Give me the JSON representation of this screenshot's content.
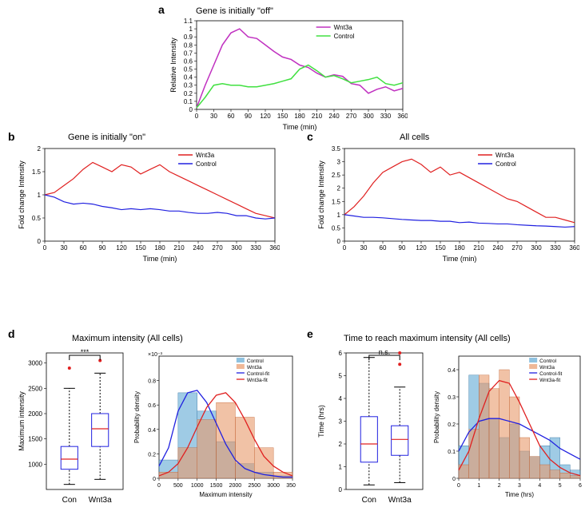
{
  "panel_a": {
    "label": "a",
    "title": "Gene is initially \"off\"",
    "xlabel": "Time (min)",
    "ylabel": "Relative Intensity",
    "xlim": [
      0,
      360
    ],
    "xtick_step": 30,
    "ylim": [
      0,
      1.1
    ],
    "ytick_step": 0.1,
    "legend": [
      "Wnt3a",
      "Control"
    ],
    "series_colors": {
      "wnt3a": "#c030c0",
      "control": "#40e040"
    },
    "line_width": 1.5,
    "font_label": 9,
    "wnt3a_x": [
      0,
      15,
      30,
      45,
      60,
      75,
      90,
      105,
      120,
      135,
      150,
      165,
      180,
      195,
      210,
      225,
      240,
      255,
      270,
      285,
      300,
      315,
      330,
      345,
      360
    ],
    "wnt3a_y": [
      0.02,
      0.3,
      0.55,
      0.8,
      0.95,
      1.0,
      0.9,
      0.88,
      0.8,
      0.72,
      0.65,
      0.62,
      0.55,
      0.52,
      0.45,
      0.4,
      0.43,
      0.41,
      0.32,
      0.3,
      0.2,
      0.25,
      0.28,
      0.23,
      0.26
    ],
    "control_x": [
      0,
      15,
      30,
      45,
      60,
      75,
      90,
      105,
      120,
      135,
      150,
      165,
      180,
      195,
      210,
      225,
      240,
      255,
      270,
      285,
      300,
      315,
      330,
      345,
      360
    ],
    "control_y": [
      0.02,
      0.15,
      0.3,
      0.32,
      0.3,
      0.3,
      0.28,
      0.28,
      0.3,
      0.32,
      0.35,
      0.38,
      0.5,
      0.55,
      0.48,
      0.4,
      0.42,
      0.38,
      0.33,
      0.35,
      0.37,
      0.4,
      0.32,
      0.3,
      0.33
    ]
  },
  "panel_b": {
    "label": "b",
    "title": "Gene is initially \"on\"",
    "xlabel": "Time (min)",
    "ylabel": "Fold change Intensity",
    "xlim": [
      0,
      360
    ],
    "xtick_step": 30,
    "ylim": [
      0,
      2.0
    ],
    "yticks": [
      0,
      0.5,
      1,
      1.5,
      2
    ],
    "legend": [
      "Wnt3a",
      "Control"
    ],
    "series_colors": {
      "wnt3a": "#e02020",
      "control": "#2020e0"
    },
    "line_width": 1.2,
    "font_label": 9,
    "wnt3a_x": [
      0,
      15,
      30,
      45,
      60,
      75,
      90,
      105,
      120,
      135,
      150,
      165,
      180,
      195,
      210,
      225,
      240,
      255,
      270,
      285,
      300,
      315,
      330,
      345,
      360
    ],
    "wnt3a_y": [
      1.0,
      1.05,
      1.2,
      1.35,
      1.55,
      1.7,
      1.6,
      1.5,
      1.65,
      1.6,
      1.45,
      1.55,
      1.65,
      1.5,
      1.4,
      1.3,
      1.2,
      1.1,
      1.0,
      0.9,
      0.8,
      0.7,
      0.6,
      0.55,
      0.5
    ],
    "control_x": [
      0,
      15,
      30,
      45,
      60,
      75,
      90,
      105,
      120,
      135,
      150,
      165,
      180,
      195,
      210,
      225,
      240,
      255,
      270,
      285,
      300,
      315,
      330,
      345,
      360
    ],
    "control_y": [
      1.0,
      0.95,
      0.85,
      0.8,
      0.82,
      0.8,
      0.75,
      0.72,
      0.68,
      0.7,
      0.68,
      0.7,
      0.68,
      0.65,
      0.65,
      0.62,
      0.6,
      0.6,
      0.62,
      0.6,
      0.55,
      0.55,
      0.5,
      0.48,
      0.5
    ]
  },
  "panel_c": {
    "label": "c",
    "title": "All cells",
    "xlabel": "Time (min)",
    "ylabel": "Fold change Intensity",
    "xlim": [
      0,
      360
    ],
    "xtick_step": 30,
    "ylim": [
      0,
      3.5
    ],
    "yticks": [
      0,
      0.5,
      1,
      1.5,
      2,
      2.5,
      3,
      3.5
    ],
    "legend": [
      "Wnt3a",
      "Control"
    ],
    "series_colors": {
      "wnt3a": "#e02020",
      "control": "#2020e0"
    },
    "line_width": 1.2,
    "font_label": 9,
    "wnt3a_x": [
      0,
      15,
      30,
      45,
      60,
      75,
      90,
      105,
      120,
      135,
      150,
      165,
      180,
      195,
      210,
      225,
      240,
      255,
      270,
      285,
      300,
      315,
      330,
      345,
      360
    ],
    "wnt3a_y": [
      1.0,
      1.3,
      1.7,
      2.2,
      2.6,
      2.8,
      3.0,
      3.1,
      2.9,
      2.6,
      2.8,
      2.5,
      2.6,
      2.4,
      2.2,
      2.0,
      1.8,
      1.6,
      1.5,
      1.3,
      1.1,
      0.9,
      0.9,
      0.8,
      0.7
    ],
    "control_x": [
      0,
      15,
      30,
      45,
      60,
      75,
      90,
      105,
      120,
      135,
      150,
      165,
      180,
      195,
      210,
      225,
      240,
      255,
      270,
      285,
      300,
      315,
      330,
      345,
      360
    ],
    "control_y": [
      1.0,
      0.95,
      0.9,
      0.9,
      0.88,
      0.85,
      0.82,
      0.8,
      0.78,
      0.78,
      0.75,
      0.75,
      0.7,
      0.72,
      0.68,
      0.67,
      0.65,
      0.65,
      0.62,
      0.6,
      0.58,
      0.57,
      0.55,
      0.53,
      0.55
    ]
  },
  "panel_d": {
    "label": "d",
    "title": "Maximum intensity (All cells)",
    "box": {
      "xlabels": [
        "Con",
        "Wnt3a"
      ],
      "ylabel": "Maximum intensity",
      "ylim": [
        500,
        3200
      ],
      "yticks": [
        1000,
        1500,
        2000,
        2500,
        3000
      ],
      "sig_label": "***",
      "box_border": "#2020e0",
      "median_color": "#e02020",
      "outlier_color": "#e02020",
      "whisker_color": "#000000",
      "font_label": 9,
      "con": {
        "q1": 900,
        "med": 1100,
        "q3": 1350,
        "lo": 600,
        "hi": 2500,
        "outliers": [
          2900
        ]
      },
      "wnt3a": {
        "q1": 1350,
        "med": 1700,
        "q3": 2000,
        "lo": 700,
        "hi": 2800,
        "outliers": [
          3050
        ]
      }
    },
    "hist": {
      "xlabel": "Maximum intensity",
      "ylabel": "Probability density",
      "ylabel_suffix": "×10⁻³",
      "xlim": [
        0,
        3500
      ],
      "xtick_step": 500,
      "ylim": [
        0,
        0.001
      ],
      "yticks": [
        0,
        0.2,
        0.4,
        0.6,
        0.8
      ],
      "bin_width": 500,
      "legend": [
        "Control",
        "Wnt3a",
        "Control-fit",
        "Wnt3a-fit"
      ],
      "colors": {
        "control_bar": "#5fa8d3",
        "control_bar_alpha": 0.6,
        "wnt3a_bar": "#e89a6b",
        "wnt3a_bar_alpha": 0.6,
        "control_fit": "#2020e0",
        "wnt3a_fit": "#e02020"
      },
      "font_label": 8,
      "control_bins": [
        0.15,
        0.7,
        0.55,
        0.3,
        0.12,
        0.05,
        0.02
      ],
      "wnt3a_bins": [
        0.05,
        0.25,
        0.48,
        0.62,
        0.5,
        0.25,
        0.05
      ],
      "control_fit_x": [
        0,
        250,
        500,
        750,
        1000,
        1250,
        1500,
        1750,
        2000,
        2250,
        2500,
        2750,
        3000,
        3250,
        3500
      ],
      "control_fit_y": [
        0.1,
        0.25,
        0.55,
        0.7,
        0.72,
        0.62,
        0.45,
        0.28,
        0.15,
        0.08,
        0.05,
        0.03,
        0.02,
        0.01,
        0.01
      ],
      "wnt3a_fit_x": [
        0,
        250,
        500,
        750,
        1000,
        1250,
        1500,
        1750,
        2000,
        2250,
        2500,
        2750,
        3000,
        3250,
        3500
      ],
      "wnt3a_fit_y": [
        0.02,
        0.05,
        0.12,
        0.25,
        0.42,
        0.58,
        0.68,
        0.7,
        0.62,
        0.48,
        0.32,
        0.18,
        0.1,
        0.05,
        0.02
      ]
    }
  },
  "panel_e": {
    "label": "e",
    "title": "Time to reach maximum intensity (All cells)",
    "box": {
      "xlabels": [
        "Con",
        "Wnt3a"
      ],
      "ylabel": "Time (hrs)",
      "ylim": [
        0,
        6
      ],
      "yticks": [
        0,
        1,
        2,
        3,
        4,
        5,
        6
      ],
      "sig_label": "n.s.",
      "box_border": "#2020e0",
      "median_color": "#e02020",
      "outlier_color": "#e02020",
      "whisker_color": "#000000",
      "font_label": 9,
      "con": {
        "q1": 1.2,
        "med": 2.0,
        "q3": 3.2,
        "lo": 0.2,
        "hi": 5.8,
        "outliers": []
      },
      "wnt3a": {
        "q1": 1.5,
        "med": 2.2,
        "q3": 2.8,
        "lo": 0.3,
        "hi": 4.5,
        "outliers": [
          5.5,
          6.0
        ]
      }
    },
    "hist": {
      "xlabel": "Time (hrs)",
      "ylabel": "Probability density",
      "xlim": [
        0,
        6
      ],
      "xtick_step": 1,
      "ylim": [
        0,
        0.45
      ],
      "yticks": [
        0,
        0.1,
        0.2,
        0.3,
        0.4
      ],
      "bin_width": 0.5,
      "legend": [
        "Control",
        "Wnt3a",
        "Control-fit",
        "Wnt3a-fit"
      ],
      "colors": {
        "control_bar": "#5fa8d3",
        "control_bar_alpha": 0.6,
        "wnt3a_bar": "#e89a6b",
        "wnt3a_bar_alpha": 0.6,
        "control_fit": "#2020e0",
        "wnt3a_fit": "#e02020"
      },
      "font_label": 8,
      "control_bins": [
        0.12,
        0.38,
        0.35,
        0.22,
        0.15,
        0.2,
        0.1,
        0.08,
        0.12,
        0.15,
        0.05,
        0.03
      ],
      "wnt3a_bins": [
        0.05,
        0.18,
        0.38,
        0.33,
        0.4,
        0.3,
        0.15,
        0.08,
        0.05,
        0.03,
        0.02,
        0.01
      ],
      "control_fit_x": [
        0,
        0.5,
        1,
        1.5,
        2,
        2.5,
        3,
        3.5,
        4,
        4.5,
        5,
        5.5,
        6
      ],
      "control_fit_y": [
        0.1,
        0.17,
        0.21,
        0.22,
        0.22,
        0.21,
        0.2,
        0.18,
        0.16,
        0.14,
        0.11,
        0.09,
        0.07
      ],
      "wnt3a_fit_x": [
        0,
        0.5,
        1,
        1.5,
        2,
        2.5,
        3,
        3.5,
        4,
        4.5,
        5,
        5.5,
        6
      ],
      "wnt3a_fit_y": [
        0.03,
        0.1,
        0.22,
        0.32,
        0.36,
        0.35,
        0.28,
        0.2,
        0.12,
        0.07,
        0.04,
        0.02,
        0.01
      ]
    }
  },
  "layout": {
    "background": "#ffffff",
    "axis_color": "#000000",
    "tick_font_size": 8
  }
}
